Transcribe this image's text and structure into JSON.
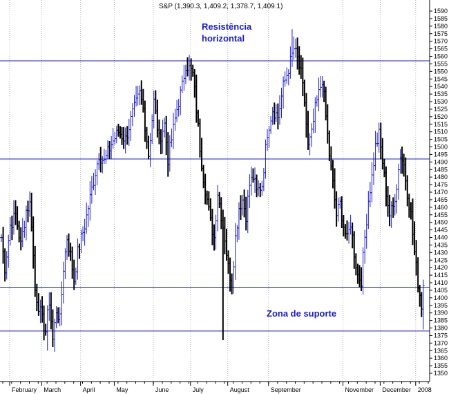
{
  "chart_data": {
    "type": "ohlc",
    "title": "S&P (1,390.3, 1,409.2, 1,378.7, 1,409.1)",
    "xlabel": "",
    "ylabel": "",
    "ylim": [
      1345,
      1592
    ],
    "y_ticks": [
      1350,
      1355,
      1360,
      1365,
      1370,
      1375,
      1380,
      1385,
      1390,
      1395,
      1400,
      1405,
      1410,
      1415,
      1420,
      1425,
      1430,
      1435,
      1440,
      1445,
      1450,
      1455,
      1460,
      1465,
      1470,
      1475,
      1480,
      1485,
      1490,
      1495,
      1500,
      1505,
      1510,
      1515,
      1520,
      1525,
      1530,
      1535,
      1540,
      1545,
      1550,
      1555,
      1560,
      1565,
      1570,
      1575,
      1580,
      1585,
      1590
    ],
    "x_months": [
      {
        "label": "February",
        "day": 0
      },
      {
        "label": "March",
        "day": 18
      },
      {
        "label": "April",
        "day": 40
      },
      {
        "label": "May",
        "day": 59
      },
      {
        "label": "June",
        "day": 81
      },
      {
        "label": "July",
        "day": 102
      },
      {
        "label": "August",
        "day": 123
      },
      {
        "label": "September",
        "day": 146
      },
      {
        "label": "November",
        "day": 188
      },
      {
        "label": "December",
        "day": 209
      },
      {
        "label": "2008",
        "day": 229
      }
    ],
    "horizontal_lines": [
      1557,
      1492,
      1407,
      1378
    ],
    "annotations": [
      {
        "text": "Resistência",
        "group": "resistance"
      },
      {
        "text": "horizontal",
        "group": "resistance"
      },
      {
        "text": "Zona de suporte",
        "group": "support"
      }
    ],
    "series": [
      {
        "anchors": [
          {
            "day": 0,
            "close": 1440
          },
          {
            "day": 2,
            "close": 1420
          },
          {
            "day": 5,
            "close": 1448
          },
          {
            "day": 8,
            "close": 1455
          },
          {
            "day": 11,
            "close": 1435
          },
          {
            "day": 14,
            "close": 1458
          },
          {
            "day": 16,
            "close": 1462
          },
          {
            "day": 17,
            "close": 1450
          },
          {
            "day": 19,
            "close": 1405
          },
          {
            "day": 21,
            "close": 1395
          },
          {
            "day": 23,
            "close": 1385
          },
          {
            "day": 25,
            "close": 1378
          },
          {
            "day": 27,
            "close": 1398
          },
          {
            "day": 29,
            "close": 1372
          },
          {
            "day": 31,
            "close": 1392
          },
          {
            "day": 33,
            "close": 1385
          },
          {
            "day": 35,
            "close": 1420
          },
          {
            "day": 37,
            "close": 1440
          },
          {
            "day": 39,
            "close": 1428
          },
          {
            "day": 41,
            "close": 1412
          },
          {
            "day": 43,
            "close": 1430
          },
          {
            "day": 47,
            "close": 1448
          },
          {
            "day": 51,
            "close": 1472
          },
          {
            "day": 55,
            "close": 1495
          },
          {
            "day": 58,
            "close": 1490
          },
          {
            "day": 62,
            "close": 1502
          },
          {
            "day": 66,
            "close": 1510
          },
          {
            "day": 70,
            "close": 1505
          },
          {
            "day": 74,
            "close": 1522
          },
          {
            "day": 78,
            "close": 1535
          },
          {
            "day": 80,
            "close": 1525
          },
          {
            "day": 83,
            "close": 1495
          },
          {
            "day": 86,
            "close": 1530
          },
          {
            "day": 89,
            "close": 1505
          },
          {
            "day": 92,
            "close": 1515
          },
          {
            "day": 94,
            "close": 1492
          },
          {
            "day": 96,
            "close": 1505
          },
          {
            "day": 99,
            "close": 1525
          },
          {
            "day": 102,
            "close": 1540
          },
          {
            "day": 104,
            "close": 1555
          },
          {
            "day": 106,
            "close": 1552
          },
          {
            "day": 108,
            "close": 1548
          },
          {
            "day": 110,
            "close": 1525
          },
          {
            "day": 112,
            "close": 1500
          },
          {
            "day": 114,
            "close": 1480
          },
          {
            "day": 116,
            "close": 1465
          },
          {
            "day": 118,
            "close": 1450
          },
          {
            "day": 120,
            "close": 1440
          },
          {
            "day": 122,
            "close": 1470
          },
          {
            "day": 124,
            "close": 1455
          },
          {
            "day": 126,
            "close": 1440
          },
          {
            "day": 128,
            "close": 1420
          },
          {
            "day": 130,
            "close": 1410
          },
          {
            "day": 132,
            "close": 1440
          },
          {
            "day": 134,
            "close": 1460
          },
          {
            "day": 136,
            "close": 1465
          },
          {
            "day": 138,
            "close": 1455
          },
          {
            "day": 140,
            "close": 1475
          },
          {
            "day": 142,
            "close": 1480
          },
          {
            "day": 144,
            "close": 1470
          },
          {
            "day": 147,
            "close": 1475
          },
          {
            "day": 150,
            "close": 1510
          },
          {
            "day": 153,
            "close": 1525
          },
          {
            "day": 156,
            "close": 1520
          },
          {
            "day": 159,
            "close": 1540
          },
          {
            "day": 162,
            "close": 1552
          },
          {
            "day": 165,
            "close": 1565
          },
          {
            "day": 167,
            "close": 1558
          },
          {
            "day": 169,
            "close": 1548
          },
          {
            "day": 171,
            "close": 1530
          },
          {
            "day": 173,
            "close": 1500
          },
          {
            "day": 175,
            "close": 1508
          },
          {
            "day": 177,
            "close": 1525
          },
          {
            "day": 179,
            "close": 1535
          },
          {
            "day": 181,
            "close": 1545
          },
          {
            "day": 183,
            "close": 1520
          },
          {
            "day": 185,
            "close": 1495
          },
          {
            "day": 187,
            "close": 1475
          },
          {
            "day": 189,
            "close": 1455
          },
          {
            "day": 191,
            "close": 1462
          },
          {
            "day": 193,
            "close": 1448
          },
          {
            "day": 195,
            "close": 1438
          },
          {
            "day": 197,
            "close": 1450
          },
          {
            "day": 199,
            "close": 1430
          },
          {
            "day": 201,
            "close": 1415
          },
          {
            "day": 203,
            "close": 1412
          },
          {
            "day": 205,
            "close": 1440
          },
          {
            "day": 207,
            "close": 1465
          },
          {
            "day": 209,
            "close": 1480
          },
          {
            "day": 211,
            "close": 1500
          },
          {
            "day": 213,
            "close": 1508
          },
          {
            "day": 215,
            "close": 1490
          },
          {
            "day": 217,
            "close": 1470
          },
          {
            "day": 219,
            "close": 1455
          },
          {
            "day": 221,
            "close": 1460
          },
          {
            "day": 223,
            "close": 1475
          },
          {
            "day": 225,
            "close": 1495
          },
          {
            "day": 227,
            "close": 1488
          },
          {
            "day": 229,
            "close": 1470
          },
          {
            "day": 231,
            "close": 1455
          },
          {
            "day": 233,
            "close": 1430
          },
          {
            "day": 235,
            "close": 1410
          },
          {
            "day": 237,
            "close": 1395
          },
          {
            "day": 238,
            "close": 1409
          }
        ],
        "spikes": [
          {
            "day": 26,
            "low": 1365
          },
          {
            "day": 125,
            "low": 1372
          },
          {
            "day": 164,
            "high": 1578
          },
          {
            "day": 238,
            "low": 1379
          }
        ]
      }
    ]
  },
  "colors": {
    "bar_up": "#1a1acc",
    "bar_down": "#000000",
    "hline": "#1a1acc",
    "annotation": "#1a1acc",
    "grid": "#b0b0b0",
    "axis": "#000000"
  }
}
